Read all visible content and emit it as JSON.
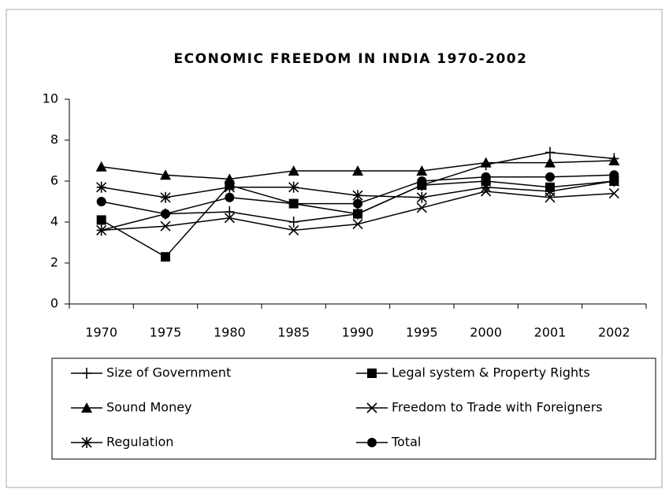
{
  "chart_data": {
    "type": "line",
    "title": "ECONOMIC FREEDOM IN INDIA 1970-2002",
    "categories": [
      "1970",
      "1975",
      "1980",
      "1985",
      "1990",
      "1995",
      "2000",
      "2001",
      "2002"
    ],
    "ylim": [
      0,
      10
    ],
    "yticks": [
      0,
      2,
      4,
      6,
      8,
      10
    ],
    "grid": false,
    "legend": "bottom",
    "series": [
      {
        "name": "Size of Government",
        "color": "#000000",
        "marker": "plus",
        "values": [
          3.6,
          4.4,
          4.5,
          4.0,
          4.4,
          5.8,
          6.8,
          7.4,
          7.1
        ]
      },
      {
        "name": "Legal system & Property Rights",
        "color": "#000000",
        "marker": "square",
        "values": [
          4.1,
          2.3,
          5.8,
          4.9,
          4.4,
          5.8,
          6.0,
          5.7,
          6.0
        ]
      },
      {
        "name": "Sound Money",
        "color": "#000000",
        "marker": "triangle",
        "values": [
          6.7,
          6.3,
          6.1,
          6.5,
          6.5,
          6.5,
          6.9,
          6.9,
          7.0
        ]
      },
      {
        "name": "Freedom to Trade with Foreigners",
        "color": "#000000",
        "marker": "x",
        "values": [
          3.6,
          3.8,
          4.2,
          3.6,
          3.9,
          4.7,
          5.5,
          5.2,
          5.4
        ]
      },
      {
        "name": "Regulation",
        "color": "#000000",
        "marker": "asterisk",
        "values": [
          5.7,
          5.2,
          5.7,
          5.7,
          5.3,
          5.2,
          5.7,
          5.5,
          6.0
        ]
      },
      {
        "name": "Total",
        "color": "#000000",
        "marker": "circle",
        "values": [
          5.0,
          4.4,
          5.2,
          4.9,
          4.9,
          6.0,
          6.2,
          6.2,
          6.3
        ]
      }
    ]
  }
}
